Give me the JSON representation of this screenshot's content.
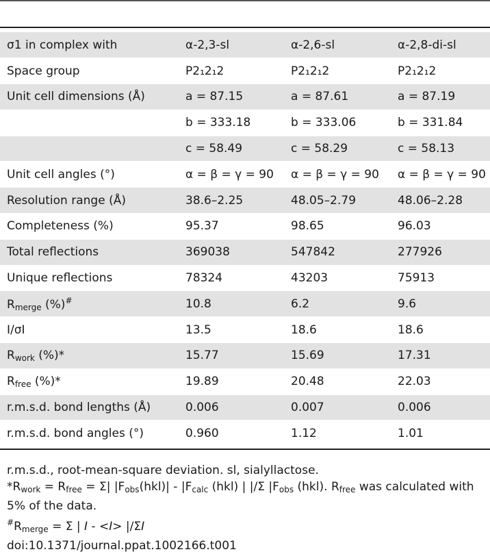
{
  "header": {
    "col1": "σ1 in complex with",
    "col2": "α-2,3-sl",
    "col3": "α-2,6-sl",
    "col4": "α-2,8-di-sl"
  },
  "rows": [
    {
      "label": "Space group",
      "v1": "P2₁2₁2",
      "v2": "P2₁2₁2",
      "v3": "P2₁2₁2"
    },
    {
      "label": "Unit cell dimensions (Å)",
      "v1": "a = 87.15",
      "v2": "a = 87.61",
      "v3": "a = 87.19"
    },
    {
      "label": "",
      "v1": "b = 333.18",
      "v2": "b = 333.06",
      "v3": "b = 331.84"
    },
    {
      "label": "",
      "v1": "c = 58.49",
      "v2": "c = 58.29",
      "v3": "c = 58.13"
    },
    {
      "label": "Unit cell angles (°)",
      "v1": "α = β = γ = 90",
      "v2": "α = β = γ = 90",
      "v3": "α = β = γ = 90"
    },
    {
      "label": "Resolution range (Å)",
      "v1": "38.6–2.25",
      "v2": "48.05–2.79",
      "v3": "48.06–2.28"
    },
    {
      "label": "Completeness (%)",
      "v1": "95.37",
      "v2": "98.65",
      "v3": "96.03"
    },
    {
      "label": "Total reflections",
      "v1": "369038",
      "v2": "547842",
      "v3": "277926"
    },
    {
      "label": "Unique reflections",
      "v1": "78324",
      "v2": "43203",
      "v3": "75913"
    },
    {
      "label_main": "R",
      "label_sub": "merge",
      "label_rest": " (%)",
      "label_sup": "#",
      "v1": "10.8",
      "v2": "6.2",
      "v3": "9.6"
    },
    {
      "label": "I/σI",
      "v1": "13.5",
      "v2": "18.6",
      "v3": "18.6"
    },
    {
      "label_main": "R",
      "label_sub": "work",
      "label_rest": " (%)*",
      "v1": "15.77",
      "v2": "15.69",
      "v3": "17.31"
    },
    {
      "label_main": "R",
      "label_sub": "free",
      "label_rest": " (%)*",
      "v1": "19.89",
      "v2": "20.48",
      "v3": "22.03"
    },
    {
      "label": "r.m.s.d. bond lengths (Å)",
      "v1": "0.006",
      "v2": "0.007",
      "v3": "0.006"
    },
    {
      "label": "r.m.s.d. bond angles (°)",
      "v1": "0.960",
      "v2": "1.12",
      "v3": "1.01"
    }
  ],
  "footnotes": {
    "abbrev": "r.m.s.d., root-mean-square deviation. sl, sialyllactose.",
    "rwork_star": "*R",
    "rwork_sub": "work",
    "rwork_eq": " = R",
    "rfree_sub": "free",
    "rwork_formula_a": " = Σ| |F",
    "obs_sub": "obs",
    "rwork_formula_b": "(hkl)| - |F",
    "calc_sub": "calc",
    "rwork_formula_c": " (hkl) | |/Σ |F",
    "obs_sub2": "obs",
    "rwork_formula_d": " (hkl). R",
    "rfree_sub2": "free",
    "rwork_formula_e": " was calculated with 5% of the data.",
    "rmerge_sup": "#",
    "rmerge_R": "R",
    "rmerge_sub": "merge",
    "rmerge_formula_a": " = Σ | ",
    "rmerge_I1": "I",
    "rmerge_formula_b": " - ",
    "rmerge_I2": "<I>",
    "rmerge_formula_c": " |/Σ",
    "rmerge_I3": "I",
    "doi": "doi:10.1371/journal.ppat.1002166.t001"
  }
}
